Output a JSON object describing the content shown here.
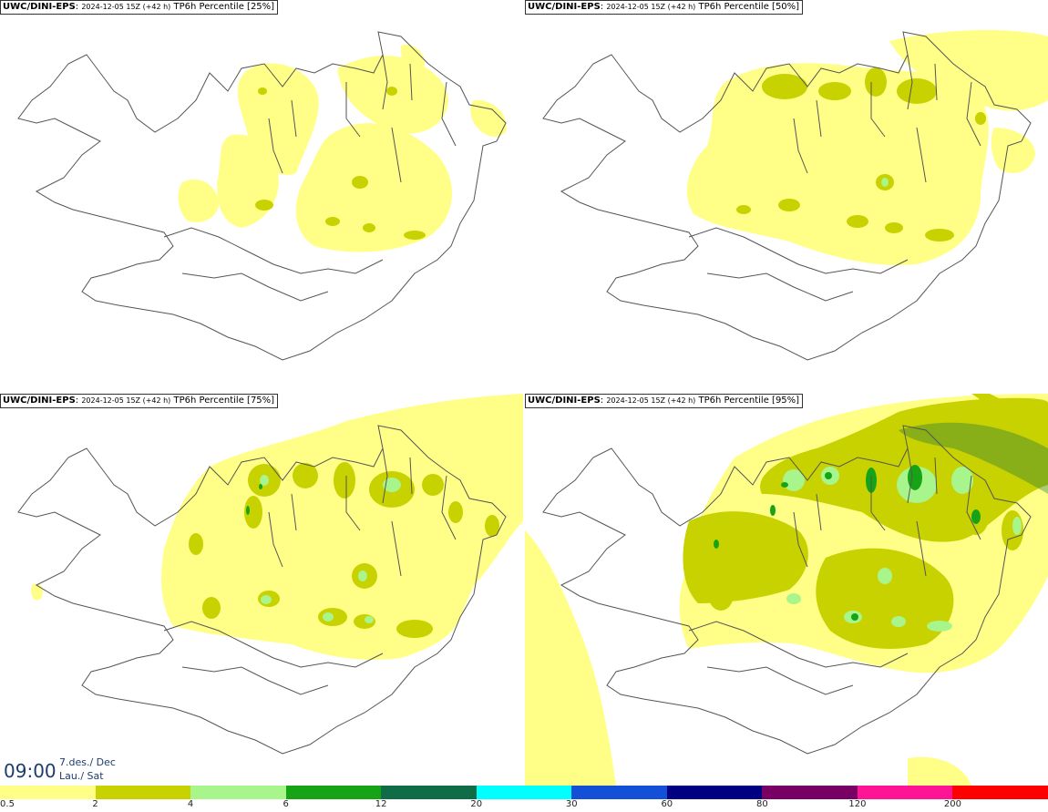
{
  "panels": [
    {
      "model": "UWC/DINI-EPS",
      "run": "2024-12-05 15Z (+42 h)",
      "field": "TP6h Percentile",
      "percentile": "[25%]"
    },
    {
      "model": "UWC/DINI-EPS",
      "run": "2024-12-05 15Z (+42 h)",
      "field": "TP6h Percentile",
      "percentile": "[50%]"
    },
    {
      "model": "UWC/DINI-EPS",
      "run": "2024-12-05 15Z (+42 h)",
      "field": "TP6h Percentile",
      "percentile": "[75%]"
    },
    {
      "model": "UWC/DINI-EPS",
      "run": "2024-12-05 15Z (+42 h)",
      "field": "TP6h Percentile",
      "percentile": "[95%]"
    }
  ],
  "valid_time": {
    "clock": "09:00",
    "date_line1": "7.des./ Dec",
    "date_line2": "Lau./ Sat"
  },
  "legend": {
    "colors": [
      "#ffff88",
      "#c8d200",
      "#a8f58c",
      "#16a416",
      "#106c46",
      "#00ffff",
      "#1450d6",
      "#000082",
      "#780064",
      "#ff1496",
      "#ff0000"
    ],
    "labels": [
      "0.5",
      "2",
      "4",
      "6",
      "12",
      "20",
      "30",
      "60",
      "80",
      "120",
      "200"
    ]
  }
}
